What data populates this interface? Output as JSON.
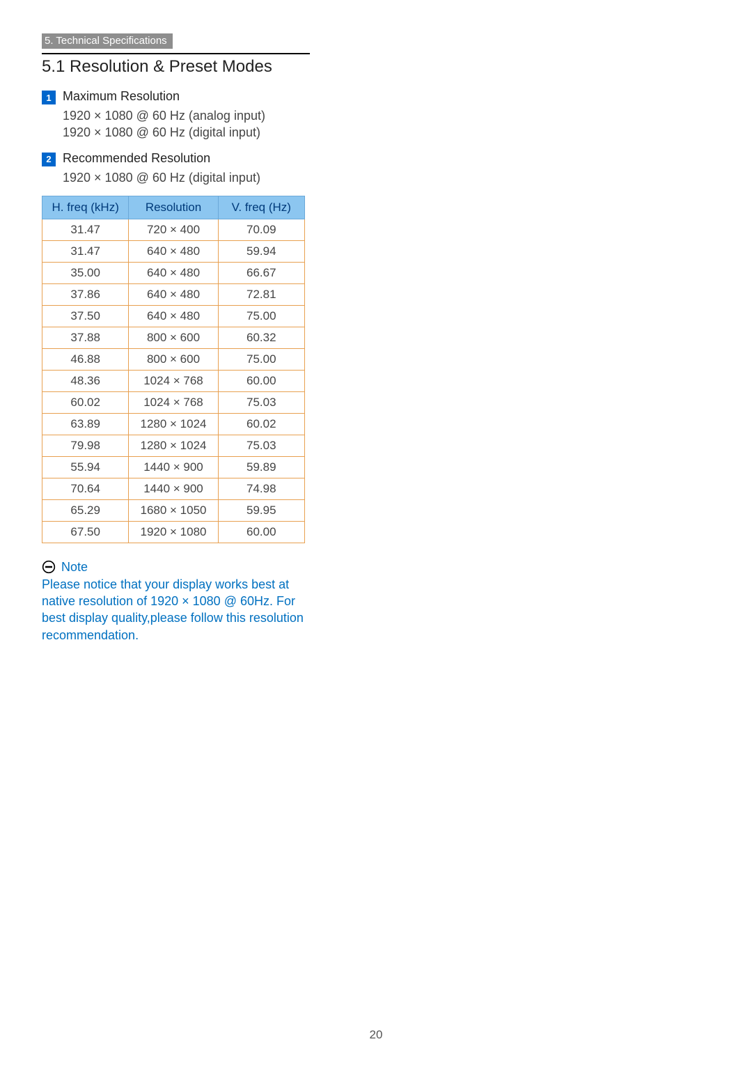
{
  "breadcrumb": "5. Technical Specifications",
  "section_title": "5.1  Resolution & Preset Modes",
  "items": [
    {
      "badge": "1",
      "label": "Maximum Resolution",
      "lines": [
        "1920 × 1080 @ 60 Hz (analog input)",
        "1920 × 1080 @ 60 Hz (digital input)"
      ]
    },
    {
      "badge": "2",
      "label": "Recommended Resolution",
      "lines": [
        "1920 × 1080 @ 60 Hz (digital input)"
      ]
    }
  ],
  "table": {
    "header_bg": "#8cc6f0",
    "header_fg": "#003a7a",
    "header_border": "#6aa8d8",
    "cell_border": "#e8a050",
    "columns": [
      "H. freq (kHz)",
      "Resolution",
      "V. freq (Hz)"
    ],
    "rows": [
      [
        "31.47",
        "720 × 400",
        "70.09"
      ],
      [
        "31.47",
        "640 × 480",
        "59.94"
      ],
      [
        "35.00",
        "640 × 480",
        "66.67"
      ],
      [
        "37.86",
        "640 × 480",
        "72.81"
      ],
      [
        "37.50",
        "640 × 480",
        "75.00"
      ],
      [
        "37.88",
        "800 × 600",
        "60.32"
      ],
      [
        "46.88",
        "800 × 600",
        "75.00"
      ],
      [
        "48.36",
        "1024 × 768",
        "60.00"
      ],
      [
        "60.02",
        "1024 × 768",
        "75.03"
      ],
      [
        "63.89",
        "1280 × 1024",
        "60.02"
      ],
      [
        "79.98",
        "1280 × 1024",
        "75.03"
      ],
      [
        "55.94",
        "1440 × 900",
        "59.89"
      ],
      [
        "70.64",
        "1440 × 900",
        "74.98"
      ],
      [
        "65.29",
        "1680 × 1050",
        "59.95"
      ],
      [
        "67.50",
        "1920 × 1080",
        "60.00"
      ]
    ]
  },
  "note": {
    "title": "Note",
    "text": "Please notice that your display works best at native resolution of 1920 × 1080 @ 60Hz. For best display quality,please follow this resolution recommendation.",
    "color": "#0070c0"
  },
  "page_number": "20"
}
